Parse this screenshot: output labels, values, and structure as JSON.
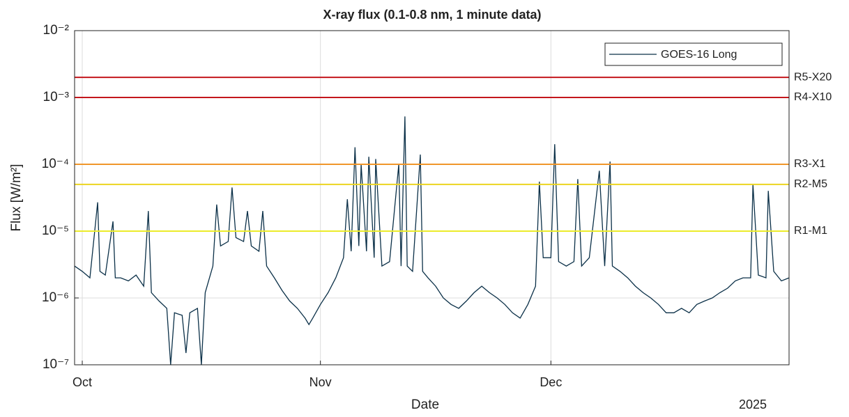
{
  "chart_data": {
    "type": "line",
    "title": "X-ray flux (0.1-0.8 nm, 1 minute data)",
    "x_label": "Date",
    "x_secondary_label": "2025",
    "y_label": "Flux [W/m²]",
    "log_scale_y": true,
    "grid": true,
    "legend_position": "top-right",
    "x": [
      -1,
      0,
      1,
      2,
      2.3,
      3,
      4,
      4.3,
      5,
      6,
      7,
      8,
      8.6,
      9,
      10,
      11,
      11.5,
      12,
      13,
      13.5,
      14,
      15,
      15.5,
      16,
      17,
      17.5,
      18,
      19,
      19.5,
      20,
      21,
      21.5,
      22,
      23,
      23.5,
      24,
      25,
      26,
      27,
      28,
      29,
      29.5,
      30,
      31,
      32,
      33,
      34,
      34.5,
      35,
      35.5,
      36,
      36.3,
      37,
      37.3,
      38,
      38.2,
      39,
      40,
      41.2,
      41.5,
      42,
      42.3,
      43,
      44,
      44.3,
      45,
      46,
      47,
      48,
      49,
      50,
      51,
      52,
      53,
      54,
      55,
      56,
      57,
      58,
      59,
      59.5,
      60,
      61,
      61.5,
      62,
      63,
      64,
      64.5,
      65,
      66,
      67.3,
      68,
      68.7,
      69,
      70,
      71,
      72,
      73,
      74,
      75,
      76,
      77,
      78,
      79,
      80,
      81,
      82,
      83,
      84,
      85,
      86,
      87,
      87.3,
      88,
      89,
      89.3,
      90,
      91,
      92
    ],
    "series": [
      {
        "name": "GOES-16 Long",
        "color": "#0b3048",
        "values": [
          3e-06,
          2.5e-06,
          2e-06,
          2.7e-05,
          2.5e-06,
          2.2e-06,
          1.4e-05,
          2e-06,
          2e-06,
          1.8e-06,
          2.2e-06,
          1.5e-06,
          2e-05,
          1.2e-06,
          9e-07,
          7e-07,
          1e-07,
          6e-07,
          5.5e-07,
          1.5e-07,
          6e-07,
          7e-07,
          1e-07,
          1.2e-06,
          3e-06,
          2.5e-05,
          6e-06,
          7e-06,
          4.5e-05,
          8e-06,
          7e-06,
          2e-05,
          6e-06,
          5e-06,
          2e-05,
          3e-06,
          2e-06,
          1.3e-06,
          9e-07,
          7e-07,
          5e-07,
          4e-07,
          5e-07,
          8e-07,
          1.2e-06,
          2e-06,
          4e-06,
          3e-05,
          5e-06,
          0.00018,
          6e-06,
          0.0001,
          5e-06,
          0.00013,
          4e-06,
          0.00012,
          3e-06,
          3.5e-06,
          0.0001,
          3e-06,
          0.00052,
          3e-06,
          2.5e-06,
          0.00014,
          2.5e-06,
          2e-06,
          1.5e-06,
          1e-06,
          8e-07,
          7e-07,
          9e-07,
          1.2e-06,
          1.5e-06,
          1.2e-06,
          1e-06,
          8e-07,
          6e-07,
          5e-07,
          8e-07,
          1.5e-06,
          5.5e-05,
          4e-06,
          4e-06,
          0.0002,
          3.5e-06,
          3e-06,
          3.5e-06,
          6e-05,
          3e-06,
          4e-06,
          8e-05,
          3e-06,
          0.00011,
          3e-06,
          2.5e-06,
          2e-06,
          1.5e-06,
          1.2e-06,
          1e-06,
          8e-07,
          6e-07,
          6e-07,
          7e-07,
          6e-07,
          8e-07,
          9e-07,
          1e-06,
          1.2e-06,
          1.4e-06,
          1.8e-06,
          2e-06,
          2e-06,
          5e-05,
          2.2e-06,
          2e-06,
          4e-05,
          2.5e-06,
          1.8e-06,
          2e-06
        ]
      }
    ],
    "thresholds": [
      {
        "label": "R5-X20",
        "value": 0.002,
        "color": "#c4161c"
      },
      {
        "label": "R4-X10",
        "value": 0.001,
        "color": "#c4161c"
      },
      {
        "label": "R3-X1",
        "value": 0.0001,
        "color": "#f0962a"
      },
      {
        "label": "R2-M5",
        "value": 5e-05,
        "color": "#ecd421"
      },
      {
        "label": "R1-M1",
        "value": 1e-05,
        "color": "#ecec2a"
      }
    ],
    "xlim": [
      -1,
      92
    ],
    "xticks": [
      {
        "value": 0,
        "label": "Oct"
      },
      {
        "value": 31,
        "label": "Nov"
      },
      {
        "value": 61,
        "label": "Dec"
      }
    ],
    "ylim": [
      1e-07,
      0.01
    ],
    "yticks": [
      {
        "value": 1e-07,
        "label": "10⁻⁷"
      },
      {
        "value": 1e-06,
        "label": "10⁻⁶"
      },
      {
        "value": 1e-05,
        "label": "10⁻⁵"
      },
      {
        "value": 0.0001,
        "label": "10⁻⁴"
      },
      {
        "value": 0.001,
        "label": "10⁻³"
      },
      {
        "value": 0.01,
        "label": "10⁻²"
      }
    ]
  }
}
